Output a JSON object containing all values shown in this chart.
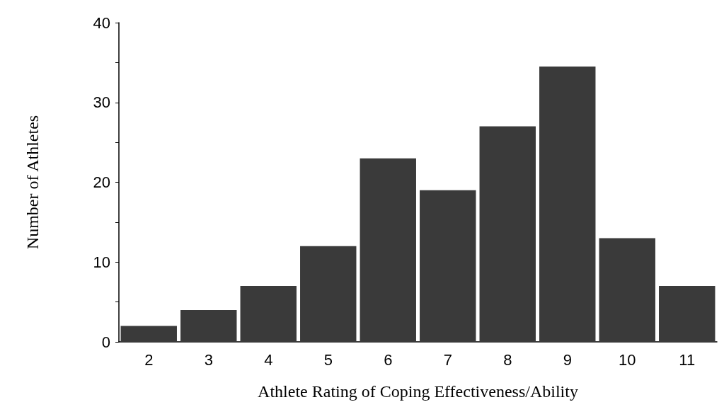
{
  "chart_data": {
    "type": "bar",
    "xlabel": "Athlete Rating of Coping Effectiveness/Ability",
    "ylabel": "Number of Athletes",
    "categories": [
      "2",
      "3",
      "4",
      "5",
      "6",
      "7",
      "8",
      "9",
      "10",
      "11"
    ],
    "values": [
      2,
      4,
      7,
      12,
      23,
      19,
      27,
      34.5,
      13,
      7
    ],
    "color": "#3a3a3a",
    "ylim": [
      0,
      40
    ],
    "yticks": [
      0,
      {
        "value": 5,
        "label": null
      },
      10,
      {
        "value": 15,
        "label": null
      },
      20,
      {
        "value": 25,
        "label": null
      },
      30,
      {
        "value": 35,
        "label": null
      },
      40
    ],
    "grid": false
  }
}
